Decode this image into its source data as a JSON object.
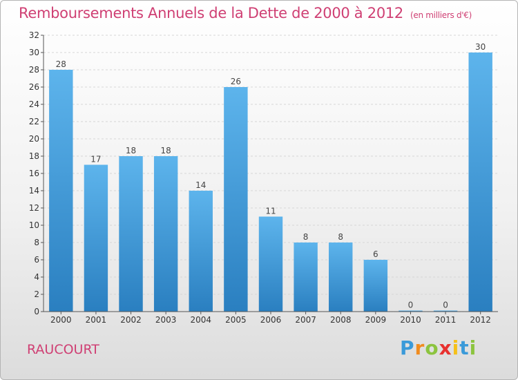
{
  "chart_data": {
    "type": "bar",
    "title": "Remboursements Annuels de la Dette de 2000 à 2012",
    "subtitle": "(en milliers d'€)",
    "categories": [
      "2000",
      "2001",
      "2002",
      "2003",
      "2004",
      "2005",
      "2006",
      "2007",
      "2008",
      "2009",
      "2010",
      "2011",
      "2012"
    ],
    "values": [
      28,
      17,
      18,
      18,
      14,
      26,
      11,
      8,
      8,
      6,
      0,
      0,
      30
    ],
    "ylim": [
      0,
      32
    ],
    "yticks": [
      0,
      2,
      4,
      6,
      8,
      10,
      12,
      14,
      16,
      18,
      20,
      22,
      24,
      26,
      28,
      30,
      32
    ],
    "xlabel": "",
    "ylabel": "",
    "bar_color": "#4ea6e2"
  },
  "commune": "RAUCOURT",
  "logo": {
    "letters": [
      "P",
      "r",
      "o",
      "x",
      "i",
      "t",
      "i"
    ],
    "colors": [
      "#3a9ad9",
      "#f08c1f",
      "#8cc43f",
      "#e8312f",
      "#f5c01a",
      "#3a9ad9",
      "#8cc43f"
    ]
  }
}
